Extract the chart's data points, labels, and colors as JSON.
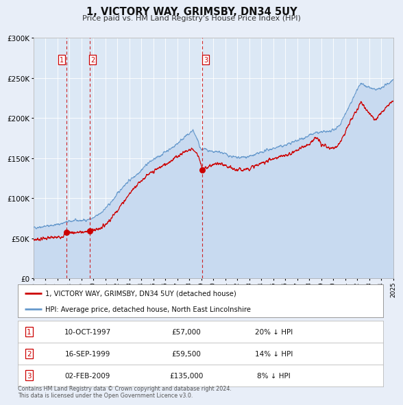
{
  "title": "1, VICTORY WAY, GRIMSBY, DN34 5UY",
  "subtitle": "Price paid vs. HM Land Registry's House Price Index (HPI)",
  "ylim": [
    0,
    300000
  ],
  "yticks": [
    0,
    50000,
    100000,
    150000,
    200000,
    250000,
    300000
  ],
  "x_start_year": 1995,
  "x_end_year": 2025,
  "sales": [
    {
      "date_decimal": 1997.78,
      "price": 57000,
      "label": "1"
    },
    {
      "date_decimal": 1999.71,
      "price": 59500,
      "label": "2"
    },
    {
      "date_decimal": 2009.09,
      "price": 135000,
      "label": "3"
    }
  ],
  "sale_color": "#cc0000",
  "hpi_line_color": "#6699cc",
  "hpi_fill_color": "#c8daf0",
  "vline_color": "#cc0000",
  "plot_bg_color": "#dce8f5",
  "page_bg_color": "#e8eef8",
  "legend_entries": [
    "1, VICTORY WAY, GRIMSBY, DN34 5UY (detached house)",
    "HPI: Average price, detached house, North East Lincolnshire"
  ],
  "table_rows": [
    {
      "num": "1",
      "date": "10-OCT-1997",
      "price": "£57,000",
      "hpi": "20% ↓ HPI"
    },
    {
      "num": "2",
      "date": "16-SEP-1999",
      "price": "£59,500",
      "hpi": "14% ↓ HPI"
    },
    {
      "num": "3",
      "date": "02-FEB-2009",
      "price": "£135,000",
      "hpi": "8% ↓ HPI"
    }
  ],
  "footnote1": "Contains HM Land Registry data © Crown copyright and database right 2024.",
  "footnote2": "This data is licensed under the Open Government Licence v3.0."
}
